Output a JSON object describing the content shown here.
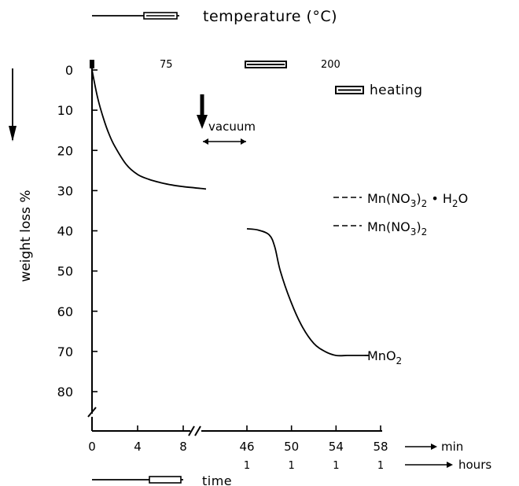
{
  "chart_data": {
    "type": "line",
    "top_legend": "temperature (°C)",
    "bottom_legend": "time",
    "ylabel": "weight loss %",
    "ylim": [
      0,
      80
    ],
    "y_ticks": [
      "0",
      "10",
      "20",
      "30",
      "40",
      "50",
      "60",
      "70",
      "80"
    ],
    "x_ticks_min": [
      "0",
      "4",
      "8",
      "46",
      "50",
      "54",
      "58"
    ],
    "x_ticks_hours": [
      "1",
      "1",
      "1",
      "1"
    ],
    "x_unit_min": "min",
    "x_unit_hours": "hours",
    "temperatures": [
      {
        "label": "75",
        "from_min": 0,
        "to_min": 10
      },
      {
        "label": "200",
        "from_min": 46,
        "to_min": 57
      }
    ],
    "heating_label": "heating",
    "vacuum_label": "vacuum",
    "annotations": [
      {
        "label": "Mn(NO3)2 • H2O",
        "y": 31.5
      },
      {
        "label": "Mn(NO3)2",
        "y": 39
      },
      {
        "label": "MnO2",
        "y": 71
      }
    ],
    "series": [
      {
        "segment": "before vacuum",
        "x": [
          0,
          0.5,
          1,
          1.5,
          2,
          3,
          4,
          5,
          6,
          7,
          8,
          9,
          10
        ],
        "y": [
          0,
          7,
          12,
          16,
          19,
          23.5,
          26,
          27.2,
          28,
          28.6,
          29,
          29.3,
          29.6
        ]
      },
      {
        "segment": "after vacuum",
        "x": [
          46,
          47,
          48,
          48.5,
          49,
          50,
          51,
          52,
          53,
          54,
          55,
          56,
          57
        ],
        "y": [
          39.5,
          39.8,
          41,
          44,
          50,
          58,
          64,
          68,
          70,
          71,
          71,
          71,
          71
        ]
      }
    ]
  }
}
